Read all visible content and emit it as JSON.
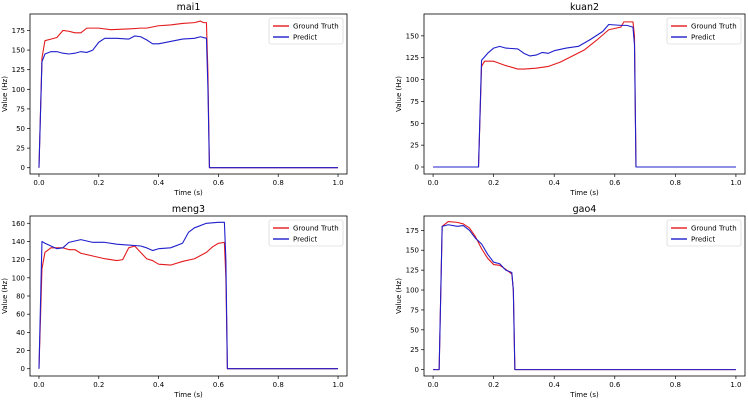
{
  "colors": {
    "ground_truth": "#e31a1c",
    "predict": "#1f1fcc"
  },
  "chart_data": [
    {
      "type": "line",
      "title": "mai1",
      "xlabel": "Time (s)",
      "ylabel": "Value (Hz)",
      "xlim": [
        -0.03,
        1.03
      ],
      "ylim": [
        -8,
        196
      ],
      "xticks": [
        0.0,
        0.2,
        0.4,
        0.6,
        0.8,
        1.0
      ],
      "xtick_labels": [
        "0.0",
        "0.2",
        "0.4",
        "0.6",
        "0.8",
        "1.0"
      ],
      "yticks": [
        0,
        25,
        50,
        75,
        100,
        125,
        150,
        175
      ],
      "ytick_labels": [
        "0",
        "25",
        "50",
        "75",
        "100",
        "125",
        "150",
        "175"
      ],
      "legend_position": "top-right",
      "series": [
        {
          "name": "Ground Truth",
          "points": [
            [
              0,
              0
            ],
            [
              0.01,
              140
            ],
            [
              0.02,
              162
            ],
            [
              0.04,
              164
            ],
            [
              0.06,
              166
            ],
            [
              0.08,
              175
            ],
            [
              0.1,
              174
            ],
            [
              0.12,
              172
            ],
            [
              0.14,
              172
            ],
            [
              0.16,
              178
            ],
            [
              0.2,
              178
            ],
            [
              0.24,
              176
            ],
            [
              0.3,
              177
            ],
            [
              0.34,
              178
            ],
            [
              0.36,
              178
            ],
            [
              0.4,
              181
            ],
            [
              0.44,
              182
            ],
            [
              0.48,
              184
            ],
            [
              0.52,
              185
            ],
            [
              0.54,
              187
            ],
            [
              0.55,
              185
            ],
            [
              0.56,
              185
            ],
            [
              0.565,
              120
            ],
            [
              0.57,
              0
            ],
            [
              1.0,
              0
            ]
          ]
        },
        {
          "name": "Predict",
          "points": [
            [
              0,
              0
            ],
            [
              0.01,
              135
            ],
            [
              0.02,
              145
            ],
            [
              0.04,
              148
            ],
            [
              0.06,
              148
            ],
            [
              0.08,
              146
            ],
            [
              0.1,
              145
            ],
            [
              0.12,
              146
            ],
            [
              0.14,
              148
            ],
            [
              0.16,
              147
            ],
            [
              0.18,
              150
            ],
            [
              0.2,
              160
            ],
            [
              0.22,
              165
            ],
            [
              0.26,
              165
            ],
            [
              0.3,
              164
            ],
            [
              0.32,
              168
            ],
            [
              0.34,
              167
            ],
            [
              0.36,
              163
            ],
            [
              0.38,
              158
            ],
            [
              0.4,
              158
            ],
            [
              0.44,
              161
            ],
            [
              0.48,
              164
            ],
            [
              0.52,
              165
            ],
            [
              0.54,
              167
            ],
            [
              0.56,
              165
            ],
            [
              0.565,
              100
            ],
            [
              0.57,
              0
            ],
            [
              1.0,
              0
            ]
          ]
        }
      ]
    },
    {
      "type": "line",
      "title": "kuan2",
      "xlabel": "Time (s)",
      "ylabel": "Value (Hz)",
      "xlim": [
        -0.03,
        1.03
      ],
      "ylim": [
        -8,
        175
      ],
      "xticks": [
        0.0,
        0.2,
        0.4,
        0.6,
        0.8,
        1.0
      ],
      "xtick_labels": [
        "0.0",
        "0.2",
        "0.4",
        "0.6",
        "0.8",
        "1.0"
      ],
      "yticks": [
        0,
        25,
        50,
        75,
        100,
        125,
        150
      ],
      "ytick_labels": [
        "0",
        "25",
        "50",
        "75",
        "100",
        "125",
        "150"
      ],
      "legend_position": "top-right",
      "series": [
        {
          "name": "Ground Truth",
          "points": [
            [
              0,
              0
            ],
            [
              0.15,
              0
            ],
            [
              0.16,
              115
            ],
            [
              0.17,
              121
            ],
            [
              0.2,
              121
            ],
            [
              0.24,
              116
            ],
            [
              0.28,
              112
            ],
            [
              0.3,
              112
            ],
            [
              0.34,
              113
            ],
            [
              0.38,
              115
            ],
            [
              0.42,
              120
            ],
            [
              0.46,
              127
            ],
            [
              0.5,
              134
            ],
            [
              0.54,
              145
            ],
            [
              0.58,
              157
            ],
            [
              0.62,
              160
            ],
            [
              0.63,
              166
            ],
            [
              0.66,
              166
            ],
            [
              0.665,
              150
            ],
            [
              0.67,
              0
            ],
            [
              1.0,
              0
            ]
          ]
        },
        {
          "name": "Predict",
          "points": [
            [
              0,
              0
            ],
            [
              0.15,
              0
            ],
            [
              0.16,
              122
            ],
            [
              0.18,
              130
            ],
            [
              0.2,
              136
            ],
            [
              0.22,
              138
            ],
            [
              0.24,
              136
            ],
            [
              0.28,
              135
            ],
            [
              0.3,
              130
            ],
            [
              0.32,
              127
            ],
            [
              0.34,
              128
            ],
            [
              0.36,
              131
            ],
            [
              0.38,
              130
            ],
            [
              0.4,
              133
            ],
            [
              0.44,
              136
            ],
            [
              0.48,
              138
            ],
            [
              0.52,
              146
            ],
            [
              0.56,
              155
            ],
            [
              0.58,
              163
            ],
            [
              0.62,
              162
            ],
            [
              0.64,
              162
            ],
            [
              0.66,
              160
            ],
            [
              0.665,
              140
            ],
            [
              0.67,
              0
            ],
            [
              1.0,
              0
            ]
          ]
        }
      ]
    },
    {
      "type": "line",
      "title": "meng3",
      "xlabel": "Time (s)",
      "ylabel": "Value (Hz)",
      "xlim": [
        -0.03,
        1.03
      ],
      "ylim": [
        -8,
        168
      ],
      "xticks": [
        0.0,
        0.2,
        0.4,
        0.6,
        0.8,
        1.0
      ],
      "xtick_labels": [
        "0.0",
        "0.2",
        "0.4",
        "0.6",
        "0.8",
        "1.0"
      ],
      "yticks": [
        0,
        20,
        40,
        60,
        80,
        100,
        120,
        140,
        160
      ],
      "ytick_labels": [
        "0",
        "20",
        "40",
        "60",
        "80",
        "100",
        "120",
        "140",
        "160"
      ],
      "legend_position": "top-right",
      "series": [
        {
          "name": "Ground Truth",
          "points": [
            [
              0,
              0
            ],
            [
              0.01,
              110
            ],
            [
              0.02,
              128
            ],
            [
              0.04,
              133
            ],
            [
              0.06,
              133
            ],
            [
              0.08,
              133
            ],
            [
              0.1,
              131
            ],
            [
              0.12,
              131
            ],
            [
              0.14,
              127
            ],
            [
              0.18,
              124
            ],
            [
              0.22,
              121
            ],
            [
              0.26,
              119
            ],
            [
              0.28,
              120
            ],
            [
              0.3,
              133
            ],
            [
              0.32,
              135
            ],
            [
              0.34,
              128
            ],
            [
              0.36,
              121
            ],
            [
              0.38,
              119
            ],
            [
              0.4,
              115
            ],
            [
              0.44,
              114
            ],
            [
              0.48,
              118
            ],
            [
              0.52,
              121
            ],
            [
              0.56,
              128
            ],
            [
              0.58,
              134
            ],
            [
              0.6,
              138
            ],
            [
              0.62,
              139
            ],
            [
              0.625,
              100
            ],
            [
              0.63,
              0
            ],
            [
              1.0,
              0
            ]
          ]
        },
        {
          "name": "Predict",
          "points": [
            [
              0,
              0
            ],
            [
              0.01,
              140
            ],
            [
              0.02,
              138
            ],
            [
              0.04,
              135
            ],
            [
              0.06,
              132
            ],
            [
              0.08,
              133
            ],
            [
              0.1,
              139
            ],
            [
              0.14,
              142
            ],
            [
              0.18,
              139
            ],
            [
              0.22,
              139
            ],
            [
              0.26,
              137
            ],
            [
              0.3,
              136
            ],
            [
              0.34,
              135
            ],
            [
              0.36,
              133
            ],
            [
              0.38,
              130
            ],
            [
              0.4,
              132
            ],
            [
              0.44,
              133
            ],
            [
              0.48,
              138
            ],
            [
              0.5,
              150
            ],
            [
              0.52,
              155
            ],
            [
              0.56,
              160
            ],
            [
              0.6,
              161
            ],
            [
              0.62,
              161
            ],
            [
              0.625,
              120
            ],
            [
              0.63,
              0
            ],
            [
              1.0,
              0
            ]
          ]
        }
      ]
    },
    {
      "type": "line",
      "title": "gao4",
      "xlabel": "Time (s)",
      "ylabel": "Value (Hz)",
      "xlim": [
        -0.03,
        1.03
      ],
      "ylim": [
        -8,
        193
      ],
      "xticks": [
        0.0,
        0.2,
        0.4,
        0.6,
        0.8,
        1.0
      ],
      "xtick_labels": [
        "0.0",
        "0.2",
        "0.4",
        "0.6",
        "0.8",
        "1.0"
      ],
      "yticks": [
        0,
        25,
        50,
        75,
        100,
        125,
        150,
        175
      ],
      "ytick_labels": [
        "0",
        "25",
        "50",
        "75",
        "100",
        "125",
        "150",
        "175"
      ],
      "legend_position": "top-right",
      "series": [
        {
          "name": "Ground Truth",
          "points": [
            [
              0,
              0
            ],
            [
              0.02,
              0
            ],
            [
              0.03,
              180
            ],
            [
              0.05,
              186
            ],
            [
              0.08,
              185
            ],
            [
              0.1,
              183
            ],
            [
              0.12,
              178
            ],
            [
              0.14,
              167
            ],
            [
              0.16,
              152
            ],
            [
              0.18,
              140
            ],
            [
              0.2,
              132
            ],
            [
              0.22,
              131
            ],
            [
              0.24,
              126
            ],
            [
              0.26,
              120
            ],
            [
              0.265,
              100
            ],
            [
              0.27,
              0
            ],
            [
              1.0,
              0
            ]
          ]
        },
        {
          "name": "Predict",
          "points": [
            [
              0,
              0
            ],
            [
              0.02,
              0
            ],
            [
              0.03,
              180
            ],
            [
              0.05,
              182
            ],
            [
              0.08,
              180
            ],
            [
              0.1,
              181
            ],
            [
              0.12,
              175
            ],
            [
              0.14,
              165
            ],
            [
              0.16,
              158
            ],
            [
              0.18,
              145
            ],
            [
              0.2,
              135
            ],
            [
              0.22,
              133
            ],
            [
              0.24,
              125
            ],
            [
              0.26,
              122
            ],
            [
              0.265,
              100
            ],
            [
              0.27,
              0
            ],
            [
              1.0,
              0
            ]
          ]
        }
      ]
    }
  ]
}
